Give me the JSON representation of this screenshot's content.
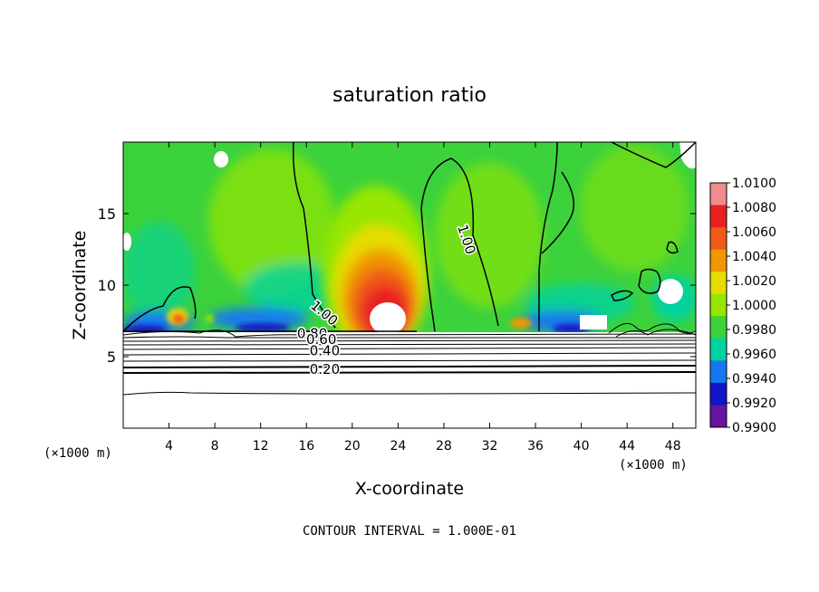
{
  "chart_data": {
    "type": "heatmap",
    "title": "saturation ratio",
    "xlabel": "X-coordinate",
    "ylabel": "Z-coordinate",
    "x_unit_label": "(×1000 m)",
    "z_unit_label": "(×1000 m)",
    "xlim": [
      0,
      50
    ],
    "ylim": [
      0,
      20
    ],
    "x_ticks": [
      4,
      8,
      12,
      16,
      20,
      24,
      28,
      32,
      36,
      40,
      44,
      48
    ],
    "x_tick_labels": [
      "4",
      "8",
      "12",
      "16",
      "20",
      "24",
      "28",
      "32",
      "36",
      "40",
      "44",
      "48"
    ],
    "y_ticks": [
      5,
      10,
      15
    ],
    "y_tick_labels": [
      "5",
      "10",
      "15"
    ],
    "colorbar": {
      "labels": [
        "1.0100",
        "1.0080",
        "1.0060",
        "1.0040",
        "1.0020",
        "1.0000",
        "0.9980",
        "0.9960",
        "0.9940",
        "0.9920",
        "0.9900"
      ],
      "colors": [
        "#f08c8c",
        "#e82020",
        "#f05a14",
        "#f09600",
        "#e6dc00",
        "#96e600",
        "#3cd23c",
        "#00d2a0",
        "#1478f0",
        "#1414c8",
        "#6414a0"
      ]
    },
    "contour_labels": [
      {
        "text": "1.00",
        "x": 17.3,
        "z": 7.8,
        "rotate": 40
      },
      {
        "text": "1.00",
        "x": 29.6,
        "z": 13.1,
        "rotate": 72
      },
      {
        "text": "0.80",
        "x": 16.5,
        "z": 6.3,
        "rotate": 0
      },
      {
        "text": "0.60",
        "x": 17.3,
        "z": 5.9,
        "rotate": 0
      },
      {
        "text": "0.40",
        "x": 17.6,
        "z": 5.1,
        "rotate": 0
      },
      {
        "text": "0.20",
        "x": 17.6,
        "z": 3.8,
        "rotate": 0
      }
    ],
    "footer": "CONTOUR INTERVAL = 1.000E-01"
  }
}
